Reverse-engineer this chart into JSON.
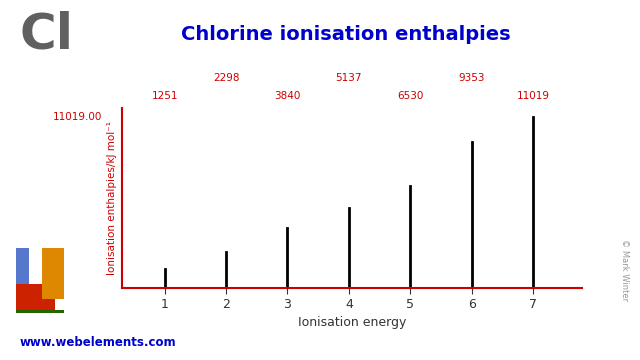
{
  "title": "Chlorine ionisation enthalpies",
  "element_symbol": "Cl",
  "xlabel": "Ionisation energy",
  "ylabel": "Ionisation enthalpies/kJ mol⁻¹",
  "ionisation_numbers": [
    1,
    2,
    3,
    4,
    5,
    6,
    7
  ],
  "ionisation_values": [
    1251,
    2298,
    3840,
    5137,
    6530,
    9353,
    11019
  ],
  "max_value": 11019.0,
  "top_labels_upper": {
    "2": 2298,
    "4": 5137,
    "6": 9353
  },
  "top_labels_lower": {
    "1": 1251,
    "3": 3840,
    "5": 6530,
    "7": 11019
  },
  "bar_color": "#000000",
  "axis_color": "#cc0000",
  "title_color": "#0000cd",
  "element_symbol_color": "#606060",
  "top_label_color": "#cc0000",
  "ylabel_color": "#cc0000",
  "xlabel_color": "#333333",
  "max_label": "11019.00",
  "background_color": "#ffffff",
  "website": "www.webelements.com",
  "website_color": "#0000cd",
  "copyright_text": "© Mark Winter",
  "pt_colors": {
    "blue": "#5577cc",
    "red": "#cc2200",
    "orange": "#dd8800",
    "green": "#226600"
  }
}
